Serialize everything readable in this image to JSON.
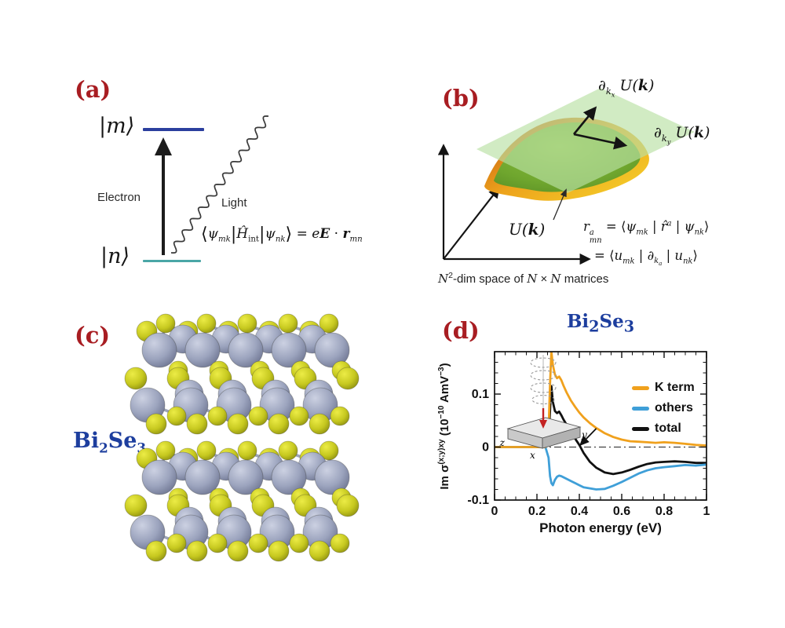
{
  "colors": {
    "panel_label": "#a81d22",
    "formula_blue": "#1d3e9e",
    "upper_level": "#2b3f9e",
    "lower_level": "#4aa6a6",
    "se_atom": "#c6c81f",
    "bi_atom": "#9ba3bd",
    "plane_green": "#b9e0a4",
    "dome_orange": "#cc6a14",
    "dome_yellow": "#f5d02a",
    "dome_green": "#6fa62e"
  },
  "panel_a": {
    "label": "(a)",
    "upper_state": "|m⟩",
    "lower_state": "|n⟩",
    "electron_label": "Electron",
    "light_label": "Light",
    "eq": {
      "b1": "⟨",
      "p1": "ψ",
      "s1": "mk",
      "b2": "|",
      "p2": "Ĥ",
      "s2": "int",
      "b3": "|",
      "p3": "ψ",
      "s3": "nk",
      "b4": "⟩",
      "eqs": " = ",
      "p4": "e",
      "p5": "E",
      "dot": " · ",
      "p6": "r",
      "s4": "mn"
    }
  },
  "panel_b": {
    "label": "(b)",
    "deriv_x": {
      "d": "∂",
      "s": "k",
      "ss": "x",
      "u": " U(",
      "k": "k",
      "close": ")"
    },
    "deriv_y": {
      "d": "∂",
      "s": "k",
      "ss": "y",
      "u": " U(",
      "k": "k",
      "close": ")"
    },
    "surface_label": {
      "u": "U(",
      "k": "k",
      "close": ")"
    },
    "eq1": {
      "r": "r",
      "sup": "a",
      "sub": "mn",
      "m1": " = ⟨",
      "psi1": "ψ",
      "s1": "mk",
      "m2": " | ",
      "rhat": "r̂",
      "sup2": "a",
      "m3": " | ",
      "psi2": "ψ",
      "s2": "nk",
      "m4": "⟩"
    },
    "eq2": {
      "m1": "= ⟨",
      "u1": "u",
      "s1": "mk",
      "m2": " | ",
      "d": "∂",
      "s2": "k",
      "ss": "a",
      "m3": " | ",
      "u2": "u",
      "s3": "nk",
      "m4": "⟩"
    },
    "caption": {
      "n1": "N",
      "sup": "2",
      "mid": "-dim space of ",
      "n2": "N",
      "times": " × ",
      "n3": "N",
      "end": " matrices"
    }
  },
  "panel_c": {
    "label": "(c)",
    "formula": {
      "p1": "Bi",
      "s1": "2",
      "p2": "Se",
      "s2": "3"
    }
  },
  "panel_d": {
    "label": "(d)",
    "title": {
      "p1": "Bi",
      "s1": "2",
      "p2": "Se",
      "s2": "3"
    },
    "inset": {
      "x": "x",
      "y": "y",
      "z": "z"
    }
  },
  "chart_data": {
    "type": "line",
    "title": "Bi2Se3",
    "xlabel": "Photon energy (eV)",
    "ylabel": "Im σ(x;y)xy (10−10 AmV−3)",
    "ylabel_parts": {
      "p1": "Im σ",
      "sup1": "(x;y)xy",
      "p2": " (10",
      "sup2": "−10",
      "p3": " AmV",
      "sup3": "−3",
      "p4": ")"
    },
    "xlim": [
      0,
      1
    ],
    "ylim": [
      -0.1,
      0.18
    ],
    "xticks": [
      0,
      0.2,
      0.4,
      0.6,
      0.8,
      1
    ],
    "xtick_labels": [
      "0",
      "0.2",
      "0.4",
      "0.6",
      "0.8",
      "1"
    ],
    "yticks": [
      -0.1,
      0,
      0.1
    ],
    "ytick_labels": [
      "-0.1",
      "0",
      "0.1"
    ],
    "x_minor_step": 0.05,
    "y_minor_step": 0.02,
    "zero_line": "dash-dot",
    "legend_position": "top-right",
    "grid": false,
    "x": [
      0,
      0.24,
      0.255,
      0.262,
      0.268,
      0.275,
      0.285,
      0.295,
      0.305,
      0.315,
      0.325,
      0.34,
      0.36,
      0.38,
      0.4,
      0.42,
      0.45,
      0.48,
      0.52,
      0.56,
      0.6,
      0.64,
      0.68,
      0.72,
      0.76,
      0.8,
      0.85,
      0.9,
      0.95,
      1.0
    ],
    "series": [
      {
        "name": "K term",
        "color": "#f0a11d",
        "y": [
          0,
          0,
          0.03,
          0.12,
          0.18,
          0.155,
          0.137,
          0.13,
          0.133,
          0.126,
          0.116,
          0.103,
          0.088,
          0.076,
          0.065,
          0.056,
          0.045,
          0.036,
          0.026,
          0.019,
          0.014,
          0.011,
          0.01,
          0.009,
          0.008,
          0.009,
          0.008,
          0.006,
          0.004,
          0.003
        ]
      },
      {
        "name": "others",
        "color": "#3f9fd8",
        "y": [
          0,
          0,
          -0.02,
          -0.055,
          -0.068,
          -0.072,
          -0.062,
          -0.056,
          -0.054,
          -0.055,
          -0.057,
          -0.06,
          -0.064,
          -0.068,
          -0.072,
          -0.076,
          -0.078,
          -0.08,
          -0.079,
          -0.073,
          -0.066,
          -0.058,
          -0.05,
          -0.044,
          -0.04,
          -0.038,
          -0.036,
          -0.034,
          -0.035,
          -0.033
        ]
      },
      {
        "name": "total",
        "color": "#111111",
        "y": [
          0,
          0,
          0.015,
          0.07,
          0.115,
          0.085,
          0.068,
          0.064,
          0.067,
          0.06,
          0.052,
          0.042,
          0.029,
          0.016,
          0.004,
          -0.011,
          -0.028,
          -0.039,
          -0.048,
          -0.051,
          -0.048,
          -0.043,
          -0.037,
          -0.032,
          -0.029,
          -0.028,
          -0.027,
          -0.028,
          -0.03,
          -0.03
        ]
      }
    ],
    "annotation_arrow": {
      "from": [
        0.48,
        0.035
      ],
      "to": [
        0.405,
        0.004
      ]
    }
  }
}
